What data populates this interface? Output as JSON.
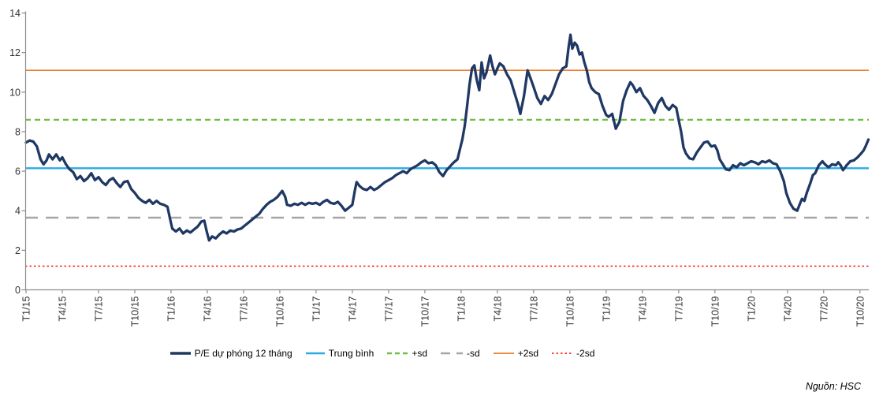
{
  "chart_data": {
    "type": "line",
    "title": "",
    "xlabel": "",
    "ylabel": "",
    "ylim": [
      0,
      14
    ],
    "y_tick_labels": [
      "0",
      "2",
      "4",
      "6",
      "8",
      "10",
      "12",
      "14"
    ],
    "y_tick_values": [
      0,
      2,
      4,
      6,
      8,
      10,
      12,
      14
    ],
    "x_tick_labels": [
      "T1/15",
      "T4/15",
      "T7/15",
      "T10/15",
      "T1/16",
      "T4/16",
      "T7/16",
      "T10/16",
      "T1/17",
      "T4/17",
      "T7/17",
      "T10/17",
      "T1/18",
      "T4/18",
      "T7/18",
      "T10/18",
      "T1/19",
      "T4/19",
      "T7/19",
      "T10/19",
      "T1/20",
      "T4/20",
      "T7/20",
      "T10/20"
    ],
    "x_tick_months": [
      0,
      3,
      6,
      9,
      12,
      15,
      18,
      21,
      24,
      27,
      30,
      33,
      36,
      39,
      42,
      45,
      48,
      51,
      54,
      57,
      60,
      63,
      66,
      69
    ],
    "grid": false,
    "legend_position": "bottom-center",
    "axis_color": "#8c8c8c",
    "tick_label_color": "#333333",
    "series": [
      {
        "name": "P/E dự phóng 12 tháng",
        "color": "#1F3864",
        "width": 3.3,
        "dash": "",
        "points": [
          [
            0,
            7.45
          ],
          [
            0.3,
            7.55
          ],
          [
            0.6,
            7.5
          ],
          [
            0.9,
            7.25
          ],
          [
            1.2,
            6.6
          ],
          [
            1.45,
            6.35
          ],
          [
            1.7,
            6.55
          ],
          [
            1.9,
            6.85
          ],
          [
            2.2,
            6.6
          ],
          [
            2.5,
            6.85
          ],
          [
            2.8,
            6.55
          ],
          [
            3.0,
            6.7
          ],
          [
            3.3,
            6.35
          ],
          [
            3.6,
            6.1
          ],
          [
            3.9,
            5.95
          ],
          [
            4.2,
            5.6
          ],
          [
            4.5,
            5.75
          ],
          [
            4.8,
            5.5
          ],
          [
            5.1,
            5.65
          ],
          [
            5.4,
            5.9
          ],
          [
            5.7,
            5.55
          ],
          [
            6.0,
            5.7
          ],
          [
            6.3,
            5.45
          ],
          [
            6.6,
            5.3
          ],
          [
            6.9,
            5.55
          ],
          [
            7.2,
            5.65
          ],
          [
            7.5,
            5.4
          ],
          [
            7.8,
            5.2
          ],
          [
            8.1,
            5.45
          ],
          [
            8.4,
            5.5
          ],
          [
            8.7,
            5.1
          ],
          [
            9.0,
            4.9
          ],
          [
            9.3,
            4.65
          ],
          [
            9.6,
            4.5
          ],
          [
            9.9,
            4.4
          ],
          [
            10.2,
            4.55
          ],
          [
            10.5,
            4.35
          ],
          [
            10.8,
            4.5
          ],
          [
            11.1,
            4.35
          ],
          [
            11.4,
            4.3
          ],
          [
            11.7,
            4.2
          ],
          [
            11.95,
            3.5
          ],
          [
            12.1,
            3.1
          ],
          [
            12.4,
            2.95
          ],
          [
            12.7,
            3.1
          ],
          [
            13.0,
            2.85
          ],
          [
            13.3,
            3.0
          ],
          [
            13.6,
            2.9
          ],
          [
            13.9,
            3.05
          ],
          [
            14.2,
            3.2
          ],
          [
            14.5,
            3.45
          ],
          [
            14.75,
            3.5
          ],
          [
            14.95,
            2.95
          ],
          [
            15.15,
            2.5
          ],
          [
            15.4,
            2.7
          ],
          [
            15.7,
            2.6
          ],
          [
            16.0,
            2.8
          ],
          [
            16.3,
            2.95
          ],
          [
            16.6,
            2.85
          ],
          [
            16.9,
            3.0
          ],
          [
            17.2,
            2.95
          ],
          [
            17.5,
            3.05
          ],
          [
            17.8,
            3.1
          ],
          [
            18.1,
            3.25
          ],
          [
            18.4,
            3.4
          ],
          [
            18.7,
            3.55
          ],
          [
            19.0,
            3.7
          ],
          [
            19.3,
            3.85
          ],
          [
            19.6,
            4.1
          ],
          [
            19.9,
            4.3
          ],
          [
            20.2,
            4.45
          ],
          [
            20.5,
            4.55
          ],
          [
            20.8,
            4.7
          ],
          [
            21.0,
            4.85
          ],
          [
            21.2,
            5.0
          ],
          [
            21.45,
            4.7
          ],
          [
            21.6,
            4.3
          ],
          [
            21.9,
            4.25
          ],
          [
            22.2,
            4.35
          ],
          [
            22.5,
            4.3
          ],
          [
            22.8,
            4.4
          ],
          [
            23.1,
            4.3
          ],
          [
            23.4,
            4.4
          ],
          [
            23.7,
            4.35
          ],
          [
            24.0,
            4.4
          ],
          [
            24.3,
            4.3
          ],
          [
            24.6,
            4.45
          ],
          [
            24.9,
            4.55
          ],
          [
            25.2,
            4.4
          ],
          [
            25.5,
            4.35
          ],
          [
            25.8,
            4.45
          ],
          [
            26.1,
            4.25
          ],
          [
            26.4,
            4.0
          ],
          [
            26.7,
            4.15
          ],
          [
            27.0,
            4.3
          ],
          [
            27.2,
            5.0
          ],
          [
            27.35,
            5.45
          ],
          [
            27.6,
            5.25
          ],
          [
            27.9,
            5.1
          ],
          [
            28.2,
            5.05
          ],
          [
            28.5,
            5.2
          ],
          [
            28.8,
            5.05
          ],
          [
            29.1,
            5.15
          ],
          [
            29.4,
            5.3
          ],
          [
            29.7,
            5.45
          ],
          [
            30.0,
            5.55
          ],
          [
            30.3,
            5.65
          ],
          [
            30.6,
            5.8
          ],
          [
            30.9,
            5.9
          ],
          [
            31.2,
            6.0
          ],
          [
            31.5,
            5.9
          ],
          [
            31.8,
            6.1
          ],
          [
            32.1,
            6.2
          ],
          [
            32.4,
            6.3
          ],
          [
            32.7,
            6.45
          ],
          [
            33.0,
            6.55
          ],
          [
            33.3,
            6.4
          ],
          [
            33.6,
            6.45
          ],
          [
            33.9,
            6.3
          ],
          [
            34.2,
            5.95
          ],
          [
            34.5,
            5.75
          ],
          [
            34.8,
            6.05
          ],
          [
            35.1,
            6.25
          ],
          [
            35.4,
            6.45
          ],
          [
            35.7,
            6.6
          ],
          [
            35.9,
            7.1
          ],
          [
            36.1,
            7.6
          ],
          [
            36.3,
            8.3
          ],
          [
            36.5,
            9.3
          ],
          [
            36.7,
            10.4
          ],
          [
            36.9,
            11.2
          ],
          [
            37.1,
            11.35
          ],
          [
            37.3,
            10.6
          ],
          [
            37.5,
            10.1
          ],
          [
            37.7,
            11.5
          ],
          [
            37.9,
            10.7
          ],
          [
            38.1,
            11.0
          ],
          [
            38.4,
            11.85
          ],
          [
            38.6,
            11.3
          ],
          [
            38.8,
            10.9
          ],
          [
            39.0,
            11.2
          ],
          [
            39.2,
            11.45
          ],
          [
            39.5,
            11.3
          ],
          [
            39.8,
            10.9
          ],
          [
            40.1,
            10.6
          ],
          [
            40.4,
            10.0
          ],
          [
            40.7,
            9.4
          ],
          [
            40.9,
            8.9
          ],
          [
            41.2,
            9.8
          ],
          [
            41.5,
            11.1
          ],
          [
            41.8,
            10.6
          ],
          [
            42.0,
            10.25
          ],
          [
            42.3,
            9.7
          ],
          [
            42.6,
            9.4
          ],
          [
            42.9,
            9.8
          ],
          [
            43.2,
            9.6
          ],
          [
            43.5,
            9.9
          ],
          [
            43.8,
            10.4
          ],
          [
            44.1,
            10.9
          ],
          [
            44.4,
            11.2
          ],
          [
            44.7,
            11.3
          ],
          [
            44.9,
            12.3
          ],
          [
            45.05,
            12.9
          ],
          [
            45.2,
            12.2
          ],
          [
            45.4,
            12.5
          ],
          [
            45.6,
            12.35
          ],
          [
            45.8,
            11.9
          ],
          [
            46.0,
            12.0
          ],
          [
            46.2,
            11.5
          ],
          [
            46.4,
            11.1
          ],
          [
            46.6,
            10.5
          ],
          [
            46.8,
            10.2
          ],
          [
            47.1,
            10.0
          ],
          [
            47.4,
            9.9
          ],
          [
            47.7,
            9.3
          ],
          [
            48.0,
            8.85
          ],
          [
            48.2,
            8.75
          ],
          [
            48.5,
            8.9
          ],
          [
            48.8,
            8.15
          ],
          [
            49.1,
            8.5
          ],
          [
            49.4,
            9.55
          ],
          [
            49.7,
            10.1
          ],
          [
            50.0,
            10.5
          ],
          [
            50.2,
            10.35
          ],
          [
            50.5,
            10.0
          ],
          [
            50.8,
            10.2
          ],
          [
            51.1,
            9.8
          ],
          [
            51.4,
            9.6
          ],
          [
            51.7,
            9.3
          ],
          [
            52.0,
            8.95
          ],
          [
            52.3,
            9.45
          ],
          [
            52.6,
            9.7
          ],
          [
            52.9,
            9.3
          ],
          [
            53.2,
            9.1
          ],
          [
            53.5,
            9.35
          ],
          [
            53.8,
            9.2
          ],
          [
            54.0,
            8.6
          ],
          [
            54.2,
            8.0
          ],
          [
            54.4,
            7.2
          ],
          [
            54.6,
            6.9
          ],
          [
            54.9,
            6.65
          ],
          [
            55.2,
            6.6
          ],
          [
            55.5,
            6.95
          ],
          [
            55.8,
            7.2
          ],
          [
            56.1,
            7.45
          ],
          [
            56.4,
            7.5
          ],
          [
            56.7,
            7.25
          ],
          [
            57.0,
            7.3
          ],
          [
            57.2,
            7.05
          ],
          [
            57.4,
            6.6
          ],
          [
            57.6,
            6.4
          ],
          [
            57.9,
            6.1
          ],
          [
            58.2,
            6.05
          ],
          [
            58.5,
            6.3
          ],
          [
            58.8,
            6.2
          ],
          [
            59.1,
            6.4
          ],
          [
            59.4,
            6.3
          ],
          [
            59.7,
            6.4
          ],
          [
            60.0,
            6.5
          ],
          [
            60.3,
            6.45
          ],
          [
            60.6,
            6.35
          ],
          [
            60.9,
            6.5
          ],
          [
            61.2,
            6.45
          ],
          [
            61.5,
            6.55
          ],
          [
            61.8,
            6.4
          ],
          [
            62.1,
            6.35
          ],
          [
            62.4,
            6.0
          ],
          [
            62.7,
            5.5
          ],
          [
            62.9,
            4.9
          ],
          [
            63.2,
            4.4
          ],
          [
            63.5,
            4.1
          ],
          [
            63.8,
            4.0
          ],
          [
            64.0,
            4.3
          ],
          [
            64.2,
            4.6
          ],
          [
            64.4,
            4.5
          ],
          [
            64.6,
            4.9
          ],
          [
            64.9,
            5.4
          ],
          [
            65.1,
            5.8
          ],
          [
            65.3,
            5.9
          ],
          [
            65.6,
            6.3
          ],
          [
            65.9,
            6.5
          ],
          [
            66.1,
            6.35
          ],
          [
            66.4,
            6.2
          ],
          [
            66.7,
            6.35
          ],
          [
            67.0,
            6.3
          ],
          [
            67.2,
            6.45
          ],
          [
            67.4,
            6.3
          ],
          [
            67.6,
            6.05
          ],
          [
            67.9,
            6.3
          ],
          [
            68.2,
            6.5
          ],
          [
            68.5,
            6.55
          ],
          [
            68.8,
            6.7
          ],
          [
            69.1,
            6.9
          ],
          [
            69.3,
            7.05
          ],
          [
            69.5,
            7.3
          ],
          [
            69.7,
            7.6
          ]
        ]
      }
    ],
    "reference_lines": [
      {
        "name": "Trung bình",
        "value": 6.15,
        "color": "#29ABE2",
        "width": 2.4,
        "dash": ""
      },
      {
        "name": "+sd",
        "value": 8.6,
        "color": "#6EBE46",
        "width": 2.2,
        "dash": "7 5"
      },
      {
        "name": "-sd",
        "value": 3.65,
        "color": "#A6A6A6",
        "width": 2.6,
        "dash": "16 10"
      },
      {
        "name": "+2sd",
        "value": 11.1,
        "color": "#E87D28",
        "width": 1.6,
        "dash": ""
      },
      {
        "name": "-2sd",
        "value": 1.2,
        "color": "#FF0000",
        "width": 1.4,
        "dash": "2.5 3"
      }
    ],
    "legend": [
      {
        "label": "P/E dự phóng 12 tháng",
        "color": "#1F3864",
        "width": 3.6,
        "dash": "",
        "swatch": 26
      },
      {
        "label": "Trung bình",
        "color": "#29ABE2",
        "width": 2.6,
        "dash": "",
        "swatch": 24
      },
      {
        "label": "+sd",
        "color": "#6EBE46",
        "width": 2.4,
        "dash": "6 4",
        "swatch": 26
      },
      {
        "label": "-sd",
        "color": "#A6A6A6",
        "width": 2.6,
        "dash": "12 8",
        "swatch": 28
      },
      {
        "label": "+2sd",
        "color": "#E87D28",
        "width": 1.8,
        "dash": "",
        "swatch": 26
      },
      {
        "label": "-2sd",
        "color": "#FF0000",
        "width": 1.5,
        "dash": "2.5 3",
        "swatch": 26
      }
    ],
    "source": "Nguồn: HSC"
  }
}
